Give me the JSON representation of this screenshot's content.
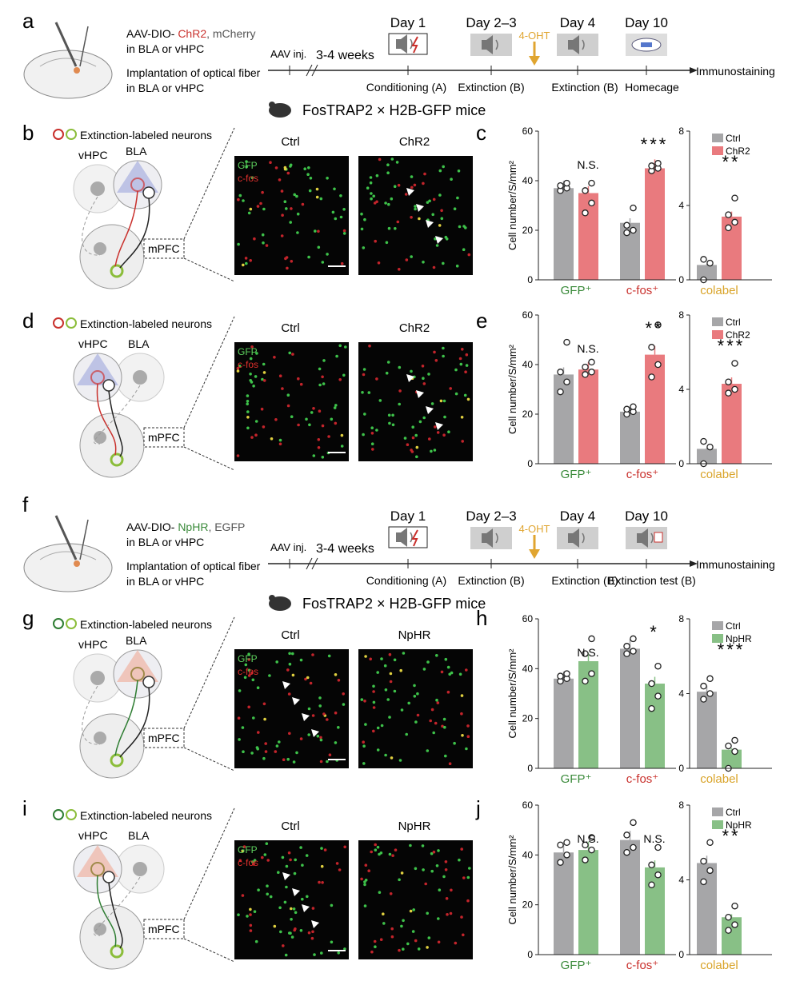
{
  "panel_letters": {
    "a": "a",
    "b": "b",
    "c": "c",
    "d": "d",
    "e": "e",
    "f": "f",
    "g": "g",
    "h": "h",
    "i": "i",
    "j": "j"
  },
  "protocols": [
    {
      "virus_prefix": "AAV-DIO- ",
      "virus_opsin": "ChR2",
      "virus_reporter": ", mCherry",
      "virus_line2": "in BLA or vHPC",
      "fiber_line1": "Implantation of optical fiber",
      "fiber_line2": "in BLA or vHPC",
      "aav_label": "AAV inj.",
      "weeks_label": "3-4 weeks",
      "days": [
        "Day 1",
        "Day 2–3",
        "Day 4",
        "Day 10"
      ],
      "ohtlabel": "4-OHT",
      "sessions": [
        "Conditioning (A)",
        "Extinction (B)",
        "Extinction (B)",
        "Homecage"
      ],
      "end_label": "Immunostaining",
      "mice_label": "FosTRAP2 × H2B-GFP mice"
    },
    {
      "virus_prefix": "AAV-DIO- ",
      "virus_opsin": "NpHR",
      "virus_reporter": ", EGFP",
      "virus_line2": "in BLA or vHPC",
      "fiber_line1": "Implantation of optical fiber",
      "fiber_line2": "in BLA or vHPC",
      "aav_label": "AAV inj.",
      "weeks_label": "3-4 weeks",
      "days": [
        "Day 1",
        "Day 2–3",
        "Day 4",
        "Day 10"
      ],
      "ohtlabel": "4-OHT",
      "sessions": [
        "Conditioning (A)",
        "Extinction (B)",
        "Extinction (B)",
        "Extinction test (B)"
      ],
      "end_label": "Immunostaining",
      "mice_label": "FosTRAP2 × H2B-GFP mice"
    }
  ],
  "circuits": [
    {
      "legend": "Extinction-labeled neurons",
      "regions": [
        "vHPC",
        "BLA",
        "mPFC"
      ]
    },
    {
      "legend": "Extinction-labeled neurons",
      "regions": [
        "vHPC",
        "BLA",
        "mPFC"
      ]
    },
    {
      "legend": "Extinction-labeled neurons",
      "regions": [
        "vHPC",
        "BLA",
        "mPFC"
      ]
    },
    {
      "legend": "Extinction-labeled neurons",
      "regions": [
        "vHPC",
        "BLA",
        "mPFC"
      ]
    }
  ],
  "micrographs": [
    {
      "titles": [
        "Ctrl",
        "ChR2"
      ],
      "markers": [
        "GFP",
        "c-fos"
      ]
    },
    {
      "titles": [
        "Ctrl",
        "ChR2"
      ],
      "markers": [
        "GFP",
        "c-fos"
      ]
    },
    {
      "titles": [
        "Ctrl",
        "NpHR"
      ],
      "markers": [
        "GFP",
        "c-fos"
      ]
    },
    {
      "titles": [
        "Ctrl",
        "NpHR"
      ],
      "markers": [
        "GFP",
        "c-fos"
      ]
    }
  ],
  "colors": {
    "ctrl": "#a6a6a8",
    "chr2": "#e97a7e",
    "nphr": "#88c086",
    "gfp": "#3a8a3a",
    "cfos": "#c9302c",
    "colabel": "#d9a42a",
    "oht": "#e0a530"
  },
  "chart_data": [
    {
      "panel": "c",
      "type": "bar",
      "ylabel": "Cell number/S/mm²",
      "ylim": [
        0,
        60
      ],
      "yticks": [
        "0",
        "20",
        "40",
        "60"
      ],
      "categories": [
        "GFP⁺",
        "c-fos⁺"
      ],
      "series": [
        {
          "name": "Ctrl",
          "values": [
            37,
            23
          ],
          "points": [
            [
              36,
              37,
              38,
              39
            ],
            [
              19,
              20,
              22,
              29
            ]
          ]
        },
        {
          "name": "ChR2",
          "values": [
            35,
            45
          ],
          "points": [
            [
              27,
              31,
              36,
              39
            ],
            [
              44,
              45,
              46,
              47
            ]
          ]
        }
      ],
      "sig": [
        "N.S.",
        "***"
      ]
    },
    {
      "panel": "c",
      "type": "bar",
      "ylim": [
        0,
        8
      ],
      "yticks": [
        "0",
        "4",
        "8"
      ],
      "categories": [
        "colabel"
      ],
      "series": [
        {
          "name": "Ctrl",
          "values": [
            0.8
          ],
          "points": [
            [
              0.0,
              0.9,
              1.1
            ]
          ]
        },
        {
          "name": "ChR2",
          "values": [
            3.4
          ],
          "points": [
            [
              2.8,
              3.1,
              3.5,
              4.4
            ]
          ]
        }
      ],
      "sig": [
        "**"
      ],
      "legend": [
        "Ctrl",
        "ChR2"
      ]
    },
    {
      "panel": "e",
      "type": "bar",
      "ylabel": "Cell number/S/mm²",
      "ylim": [
        0,
        60
      ],
      "yticks": [
        "0",
        "20",
        "40",
        "60"
      ],
      "categories": [
        "GFP⁺",
        "c-fos⁺"
      ],
      "series": [
        {
          "name": "Ctrl",
          "values": [
            36,
            21
          ],
          "points": [
            [
              29,
              33,
              37,
              49
            ]
          ],
          "points2": [
            [
              20,
              21,
              22,
              23
            ]
          ]
        },
        {
          "name": "ChR2",
          "values": [
            38,
            44
          ],
          "points": [
            [
              36,
              37,
              39,
              41
            ],
            [
              35,
              40,
              47,
              56
            ]
          ]
        }
      ],
      "sig": [
        "N.S.",
        "**"
      ]
    },
    {
      "panel": "e",
      "type": "bar",
      "ylim": [
        0,
        8
      ],
      "yticks": [
        "0",
        "4",
        "8"
      ],
      "categories": [
        "colabel"
      ],
      "series": [
        {
          "name": "Ctrl",
          "values": [
            0.8
          ],
          "points": [
            [
              0.0,
              0.9,
              1.2
            ]
          ]
        },
        {
          "name": "ChR2",
          "values": [
            4.3
          ],
          "points": [
            [
              3.8,
              4.0,
              4.4,
              5.4
            ]
          ]
        }
      ],
      "sig": [
        "***"
      ],
      "legend": [
        "Ctrl",
        "ChR2"
      ]
    },
    {
      "panel": "h",
      "type": "bar",
      "ylabel": "Cell number/S/mm²",
      "ylim": [
        0,
        60
      ],
      "yticks": [
        "0",
        "20",
        "40",
        "60"
      ],
      "categories": [
        "GFP⁺",
        "c-fos⁺"
      ],
      "series": [
        {
          "name": "Ctrl",
          "values": [
            36,
            48
          ],
          "points": [
            [
              35,
              36,
              37,
              38
            ],
            [
              46,
              47,
              49,
              52
            ]
          ]
        },
        {
          "name": "NpHR",
          "values": [
            43,
            34
          ],
          "points": [
            [
              35,
              38,
              46,
              52
            ],
            [
              24,
              29,
              34,
              41
            ]
          ]
        }
      ],
      "sig": [
        "N.S.",
        "*"
      ]
    },
    {
      "panel": "h",
      "type": "bar",
      "ylim": [
        0,
        8
      ],
      "yticks": [
        "0",
        "4",
        "8"
      ],
      "categories": [
        "colabel"
      ],
      "series": [
        {
          "name": "Ctrl",
          "values": [
            4.1
          ],
          "points": [
            [
              3.7,
              4.0,
              4.4,
              4.8
            ]
          ]
        },
        {
          "name": "NpHR",
          "values": [
            1.0
          ],
          "points": [
            [
              0.0,
              0.9,
              1.2,
              1.5
            ]
          ]
        }
      ],
      "sig": [
        "***"
      ],
      "legend": [
        "Ctrl",
        "NpHR"
      ]
    },
    {
      "panel": "j",
      "type": "bar",
      "ylabel": "Cell number/S/mm²",
      "ylim": [
        0,
        60
      ],
      "yticks": [
        "0",
        "20",
        "40",
        "60"
      ],
      "categories": [
        "GFP⁺",
        "c-fos⁺"
      ],
      "series": [
        {
          "name": "Ctrl",
          "values": [
            41,
            46
          ],
          "points": [
            [
              37,
              40,
              44,
              45
            ],
            [
              41,
              43,
              48,
              53
            ]
          ]
        },
        {
          "name": "NpHR",
          "values": [
            42,
            35
          ],
          "points": [
            [
              38,
              42,
              44,
              47
            ],
            [
              28,
              32,
              36,
              43
            ]
          ]
        }
      ],
      "sig": [
        "N.S.",
        "N.S."
      ]
    },
    {
      "panel": "j",
      "type": "bar",
      "ylim": [
        0,
        8
      ],
      "yticks": [
        "0",
        "4",
        "8"
      ],
      "categories": [
        "colabel"
      ],
      "series": [
        {
          "name": "Ctrl",
          "values": [
            4.9
          ],
          "points": [
            [
              3.9,
              4.5,
              5.0,
              6.0
            ]
          ]
        },
        {
          "name": "NpHR",
          "values": [
            2.0
          ],
          "points": [
            [
              1.3,
              1.6,
              2.0,
              2.6
            ]
          ]
        }
      ],
      "sig": [
        "**"
      ],
      "legend": [
        "Ctrl",
        "NpHR"
      ]
    }
  ]
}
